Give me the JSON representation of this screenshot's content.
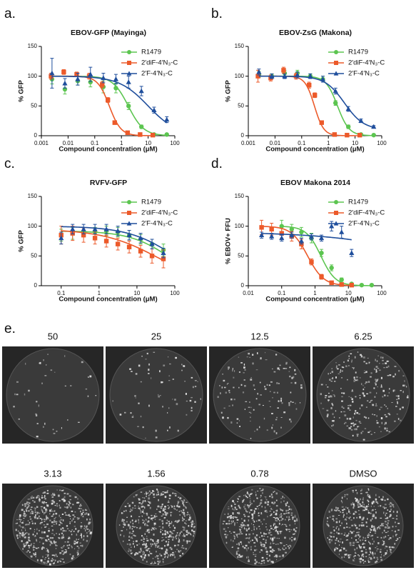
{
  "chart_data": [
    {
      "type": "scatter",
      "label": "a.",
      "title": "EBOV-GFP (Mayinga)",
      "xlabel": "Compound concentration (μM)",
      "ylabel": "% GFP",
      "xscale": "log",
      "xlim": [
        0.001,
        100
      ],
      "xticks": [
        0.001,
        0.01,
        0.1,
        1,
        10,
        100
      ],
      "ylim": [
        0,
        150
      ],
      "yticks": [
        0,
        50,
        100,
        150
      ],
      "series": [
        {
          "name": "R1479",
          "color": "#5cc550",
          "marker": "circle",
          "x": [
            0.0025,
            0.0076,
            0.023,
            0.069,
            0.21,
            0.62,
            1.85,
            5.6,
            16.7,
            50
          ],
          "values": [
            95,
            78,
            92,
            90,
            82,
            80,
            50,
            15,
            2,
            2
          ],
          "errors": [
            8,
            8,
            7,
            8,
            10,
            8,
            6,
            3,
            1,
            1
          ],
          "fit": {
            "top": 100,
            "bottom": 0,
            "ec50": 1.8,
            "hill": 1.5
          }
        },
        {
          "name": "2′diF-4′N₃-C",
          "color": "#ec5a2a",
          "marker": "square",
          "x": [
            0.0023,
            0.0069,
            0.021,
            0.062,
            0.19,
            0.31,
            0.56,
            1.7,
            5,
            15
          ],
          "values": [
            100,
            107,
            103,
            100,
            86,
            60,
            22,
            5,
            2,
            1
          ],
          "errors": [
            5,
            4,
            4,
            5,
            5,
            4,
            3,
            1,
            1,
            1
          ],
          "fit": {
            "top": 100,
            "bottom": 0,
            "ec50": 0.35,
            "hill": 2
          }
        },
        {
          "name": "2′F-4′N₃-C",
          "color": "#1f4e9c",
          "marker": "triangle",
          "x": [
            0.0025,
            0.0076,
            0.023,
            0.069,
            0.21,
            0.62,
            1.85,
            5.6,
            16.7,
            50
          ],
          "values": [
            105,
            88,
            95,
            103,
            97,
            95,
            90,
            75,
            43,
            27
          ],
          "errors": [
            25,
            8,
            10,
            12,
            8,
            8,
            10,
            8,
            5,
            5
          ],
          "fit": {
            "top": 100,
            "bottom": 0,
            "ec50": 10,
            "hill": 0.8
          }
        }
      ]
    },
    {
      "type": "scatter",
      "label": "b.",
      "title": "EBOV-ZsG (Makona)",
      "xlabel": "Compound concentration (μM)",
      "ylabel": "% GFP",
      "xscale": "log",
      "xlim": [
        0.001,
        100
      ],
      "xticks": [
        0.001,
        0.01,
        0.1,
        1,
        10,
        100
      ],
      "ylim": [
        0,
        150
      ],
      "yticks": [
        0,
        50,
        100,
        150
      ],
      "series": [
        {
          "name": "R1479",
          "color": "#5cc550",
          "marker": "circle",
          "x": [
            0.0025,
            0.0076,
            0.023,
            0.069,
            0.21,
            0.62,
            1.85,
            5.6,
            16.7,
            50
          ],
          "values": [
            103,
            100,
            105,
            105,
            100,
            95,
            55,
            15,
            2,
            1
          ],
          "errors": [
            5,
            4,
            5,
            5,
            4,
            5,
            4,
            3,
            1,
            1
          ],
          "fit": {
            "top": 100,
            "bottom": 0,
            "ec50": 2.2,
            "hill": 2
          }
        },
        {
          "name": "2′diF-4′N₃-C",
          "color": "#ec5a2a",
          "marker": "square",
          "x": [
            0.0023,
            0.0069,
            0.021,
            0.062,
            0.19,
            0.31,
            0.56,
            1.7,
            5,
            15
          ],
          "values": [
            100,
            97,
            110,
            100,
            85,
            68,
            22,
            2,
            1,
            1
          ],
          "errors": [
            10,
            5,
            5,
            5,
            5,
            4,
            3,
            1,
            1,
            1
          ],
          "fit": {
            "top": 100,
            "bottom": 0,
            "ec50": 0.3,
            "hill": 2.5
          }
        },
        {
          "name": "2′F-4′N₃-C",
          "color": "#1f4e9c",
          "marker": "triangle",
          "x": [
            0.0025,
            0.0076,
            0.023,
            0.069,
            0.21,
            0.62,
            1.85,
            5.6,
            16.7,
            50
          ],
          "values": [
            107,
            100,
            100,
            102,
            100,
            95,
            75,
            45,
            25,
            15
          ],
          "errors": [
            5,
            4,
            4,
            5,
            4,
            5,
            5,
            4,
            3,
            2
          ],
          "fit": {
            "top": 100,
            "bottom": 10,
            "ec50": 4,
            "hill": 1.2
          }
        }
      ]
    },
    {
      "type": "scatter",
      "label": "c.",
      "title": "RVFV-GFP",
      "xlabel": "Compound concentration (μM)",
      "ylabel": "% GFP",
      "xscale": "log",
      "xlim": [
        0.03,
        100
      ],
      "xticks": [
        0.1,
        1,
        10,
        100
      ],
      "ylim": [
        0,
        150
      ],
      "yticks": [
        0,
        50,
        100,
        150
      ],
      "series": [
        {
          "name": "R1479",
          "color": "#5cc550",
          "marker": "circle",
          "x": [
            0.1,
            0.2,
            0.39,
            0.78,
            1.56,
            3.13,
            6.25,
            12.5,
            25,
            50
          ],
          "values": [
            85,
            88,
            90,
            90,
            92,
            90,
            85,
            78,
            70,
            60
          ],
          "errors": [
            10,
            10,
            8,
            8,
            8,
            8,
            8,
            8,
            8,
            10
          ],
          "fit": {
            "top": 92,
            "bottom": 0,
            "ec50": 80,
            "hill": 0.8
          }
        },
        {
          "name": "2′diF-4′N₃-C",
          "color": "#ec5a2a",
          "marker": "square",
          "x": [
            0.1,
            0.2,
            0.39,
            0.78,
            1.56,
            3.13,
            6.25,
            12.5,
            25,
            50
          ],
          "values": [
            85,
            88,
            85,
            80,
            75,
            70,
            65,
            58,
            50,
            45
          ],
          "errors": [
            15,
            12,
            12,
            10,
            10,
            10,
            10,
            10,
            12,
            15
          ],
          "fit": {
            "top": 95,
            "bottom": 0,
            "ec50": 35,
            "hill": 0.6
          }
        },
        {
          "name": "2′F-4′N₃-C",
          "color": "#1f4e9c",
          "marker": "triangle",
          "x": [
            0.1,
            0.2,
            0.39,
            0.78,
            1.56,
            3.13,
            6.25,
            12.5,
            25,
            50
          ],
          "values": [
            80,
            95,
            95,
            95,
            95,
            92,
            85,
            80,
            70,
            55
          ],
          "errors": [
            10,
            8,
            8,
            8,
            8,
            8,
            8,
            8,
            8,
            8
          ],
          "fit": {
            "top": 100,
            "bottom": 0,
            "ec50": 100,
            "hill": 0.7
          }
        }
      ]
    },
    {
      "type": "scatter",
      "label": "d.",
      "title": "EBOV Makona 2014",
      "xlabel": "Compound concentration (μM)",
      "ylabel": "% EBOV+ FFU",
      "xscale": "log",
      "xlim": [
        0.01,
        100
      ],
      "xticks": [
        0.01,
        0.1,
        1,
        10,
        100
      ],
      "ylim": [
        0,
        150
      ],
      "yticks": [
        0,
        50,
        100,
        150
      ],
      "series": [
        {
          "name": "R1479",
          "color": "#5cc550",
          "marker": "circle",
          "x": [
            0.1,
            0.2,
            0.39,
            0.78,
            1.56,
            3.13,
            6.25,
            12.5,
            25,
            50
          ],
          "values": [
            100,
            95,
            90,
            80,
            55,
            30,
            10,
            3,
            1,
            1
          ],
          "errors": [
            10,
            8,
            8,
            8,
            6,
            5,
            3,
            1,
            1,
            1
          ],
          "fit": {
            "top": 100,
            "bottom": 0,
            "ec50": 1.5,
            "hill": 2
          }
        },
        {
          "name": "2′diF-4′N₃-C",
          "color": "#ec5a2a",
          "marker": "square",
          "x": [
            0.025,
            0.05,
            0.1,
            0.2,
            0.39,
            0.78,
            1.56,
            3.13,
            6.25,
            12.5
          ],
          "values": [
            98,
            95,
            88,
            83,
            70,
            40,
            15,
            5,
            2,
            1
          ],
          "errors": [
            12,
            10,
            8,
            8,
            8,
            5,
            4,
            2,
            1,
            1
          ],
          "fit": {
            "top": 100,
            "bottom": 0,
            "ec50": 0.6,
            "hill": 1.8
          }
        },
        {
          "name": "2′F-4′N₃-C",
          "color": "#1f4e9c",
          "marker": "triangle",
          "x": [
            0.025,
            0.05,
            0.1,
            0.2,
            0.39,
            0.78,
            1.56,
            3.13,
            6.25,
            12.5
          ],
          "values": [
            85,
            83,
            80,
            85,
            75,
            82,
            80,
            100,
            90,
            55
          ],
          "errors": [
            5,
            5,
            5,
            5,
            5,
            5,
            5,
            8,
            10,
            6
          ],
          "fit": {
            "top": 90,
            "bottom": 0,
            "ec50": 5000,
            "hill": 0.3
          }
        }
      ]
    }
  ],
  "panel_e": {
    "label": "e.",
    "wells": [
      "50",
      "25",
      "12.5",
      "6.25",
      "3.13",
      "1.56",
      "0.78",
      "DMSO"
    ]
  }
}
